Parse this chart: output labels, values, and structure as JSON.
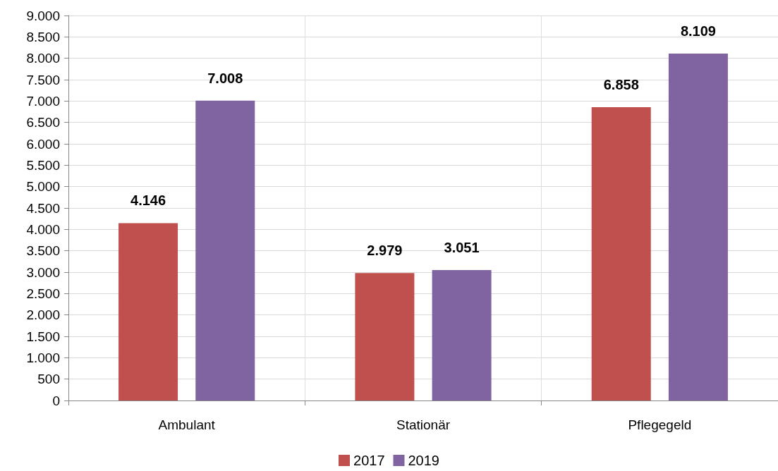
{
  "chart_data": {
    "type": "bar",
    "categories": [
      "Ambulant",
      "Stationär",
      "Pflegegeld"
    ],
    "series": [
      {
        "name": "2017",
        "color": "#c0504d",
        "values": [
          4146,
          2979,
          6858
        ],
        "value_labels": [
          "4.146",
          "2.979",
          "6.858"
        ]
      },
      {
        "name": "2019",
        "color": "#8064a2",
        "values": [
          7008,
          3051,
          8109
        ],
        "value_labels": [
          "7.008",
          "3.051",
          "8.109"
        ]
      }
    ],
    "ylim": [
      0,
      9000
    ],
    "yticks": [
      0,
      {
        "value": 500,
        "label": "500"
      },
      {
        "value": 1000,
        "label": "1.000"
      },
      {
        "value": 1500,
        "label": "1.500"
      },
      {
        "value": 2000,
        "label": "2.000"
      },
      {
        "value": 2500,
        "label": "2.500"
      },
      {
        "value": 3000,
        "label": "3.000"
      },
      {
        "value": 3500,
        "label": "3.500"
      },
      {
        "value": 4000,
        "label": "4.000"
      },
      {
        "value": 4500,
        "label": "4.500"
      },
      {
        "value": 5000,
        "label": "5.000"
      },
      {
        "value": 5500,
        "label": "5.500"
      },
      {
        "value": 6000,
        "label": "6.000"
      },
      {
        "value": 6500,
        "label": "6.500"
      },
      {
        "value": 7000,
        "label": "7.000"
      },
      {
        "value": 7500,
        "label": "7.500"
      },
      {
        "value": 8000,
        "label": "8.000"
      },
      {
        "value": 8500,
        "label": "8.500"
      },
      {
        "value": 9000,
        "label": "9.000"
      }
    ],
    "grid": true,
    "legend": "bottom"
  }
}
